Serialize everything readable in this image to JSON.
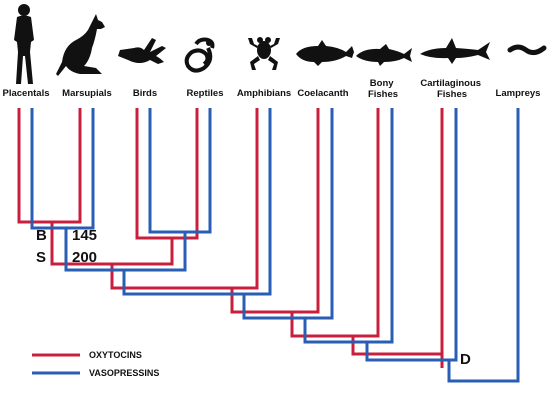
{
  "taxa": [
    {
      "id": "placentals",
      "label_lines": [
        "Placentals"
      ],
      "icon": "human-silhouette-icon"
    },
    {
      "id": "marsupials",
      "label_lines": [
        "Marsupials"
      ],
      "icon": "kangaroo-silhouette-icon"
    },
    {
      "id": "birds",
      "label_lines": [
        "Birds"
      ],
      "icon": "bird-silhouette-icon"
    },
    {
      "id": "reptiles",
      "label_lines": [
        "Reptiles"
      ],
      "icon": "snake-silhouette-icon"
    },
    {
      "id": "amphibians",
      "label_lines": [
        "Amphibians"
      ],
      "icon": "frog-silhouette-icon"
    },
    {
      "id": "coelacanth",
      "label_lines": [
        "Coelacanth"
      ],
      "icon": "coelacanth-silhouette-icon"
    },
    {
      "id": "bony-fishes",
      "label_lines": [
        "Bony",
        "Fishes"
      ],
      "icon": "fish-silhouette-icon"
    },
    {
      "id": "cartilaginous-fishes",
      "label_lines": [
        "Cartilaginous",
        "Fishes"
      ],
      "icon": "shark-silhouette-icon"
    },
    {
      "id": "lampreys",
      "label_lines": [
        "Lampreys"
      ],
      "icon": "lamprey-silhouette-icon"
    }
  ],
  "node_labels": {
    "b_letter": "B",
    "b_value": "145",
    "s_letter": "S",
    "s_value": "200",
    "d_letter": "D"
  },
  "legend": [
    {
      "label": "OXYTOCINS",
      "color": "#c8203c"
    },
    {
      "label": "VASOPRESSINS",
      "color": "#2a5db4"
    }
  ],
  "colors": {
    "oxytocin": "#c8203c",
    "vasopressin": "#2a5db4"
  }
}
